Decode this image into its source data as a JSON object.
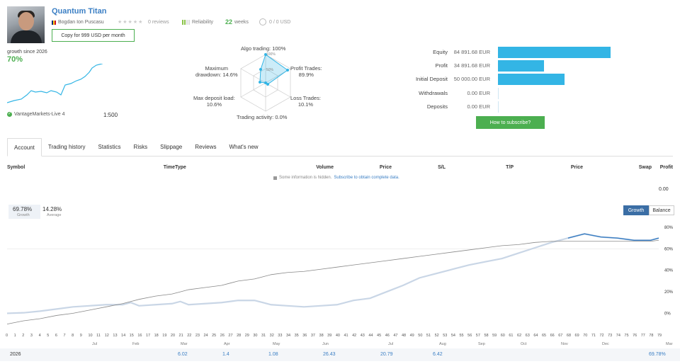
{
  "header": {
    "title": "Quantum Titan",
    "author": "Bogdan Ion Puscasu",
    "reviews": "0 reviews",
    "reliability_label": "Reliability",
    "weeks_value": "22",
    "weeks_label": "weeks",
    "subscribers": "0 / 0 USD",
    "copy_button": "Copy for 999 USD per month"
  },
  "summary": {
    "growth_since": "growth since 2026",
    "growth_pct": "70%",
    "broker": "VantageMarkets-Live 4",
    "leverage": "1:500"
  },
  "radar": {
    "algo": "Algo trading: 100%",
    "profit": [
      "Profit Trades:",
      "89.9%"
    ],
    "loss": [
      "Loss Trades:",
      "10.1%"
    ],
    "activity": "Trading activity: 0.0%",
    "deposit_load": [
      "Max deposit load:",
      "10.6%"
    ],
    "drawdown": [
      "Maximum",
      "drawdown: 14.6%"
    ],
    "ring_100": "100%",
    "ring_50": "50%"
  },
  "stats": [
    {
      "label": "Equity",
      "value": "84 891.68 EUR",
      "fraction": 1.0
    },
    {
      "label": "Profit",
      "value": "34 891.68 EUR",
      "fraction": 0.41
    },
    {
      "label": "Initial Deposit",
      "value": "50 000.00 EUR",
      "fraction": 0.59
    },
    {
      "label": "Withdrawals",
      "value": "0.00 EUR",
      "fraction": 0
    },
    {
      "label": "Deposits",
      "value": "0.00 EUR",
      "fraction": 0
    }
  ],
  "subscribe_button": "How to subscribe?",
  "tabs": [
    "Account",
    "Trading history",
    "Statistics",
    "Risks",
    "Slippage",
    "Reviews",
    "What's new"
  ],
  "table": {
    "columns": [
      "Symbol",
      "Time",
      "Type",
      "Volume",
      "Price",
      "S/L",
      "T/P",
      "Price",
      "Swap",
      "Profit"
    ],
    "note_text": "Some information is hidden.",
    "note_link": "Subscribe to obtain complete data.",
    "total_profit": "0.00"
  },
  "chart_legend": {
    "growth_value": "69.78%",
    "growth_label": "Growth",
    "average_value": "14.28%",
    "average_label": "Average"
  },
  "toggle": {
    "growth": "Growth",
    "balance": "Balance"
  },
  "footer": {
    "year": "2026",
    "values": [
      "6.02",
      "1.4",
      "1.08",
      "26.43",
      "20.79",
      "6.42"
    ],
    "total": "69.78%"
  },
  "colors": {
    "accent": "#3b7fc4",
    "green": "#4caf50",
    "bar": "#33b5e5",
    "series": "#c9d6e6",
    "series_dark": "#3b7fc4"
  },
  "chart_data": {
    "type": "line",
    "title": "",
    "ylabel": "",
    "yticks": [
      "0%",
      "20%",
      "40%",
      "60%",
      "80%"
    ],
    "ylim": [
      -5,
      84
    ],
    "month_labels": [
      "Jul",
      "Feb",
      "Mar",
      "Apr",
      "May",
      "Jun",
      "Jul",
      "Aug",
      "Sep",
      "Oct",
      "Nov",
      "Dec",
      "Mar"
    ],
    "x_ticks": [
      "0",
      "1",
      "2",
      "3",
      "4",
      "5",
      "6",
      "7",
      "8",
      "9",
      "10",
      "11",
      "12",
      "13",
      "14",
      "15",
      "16",
      "17",
      "18",
      "19",
      "20",
      "21",
      "22",
      "23",
      "24",
      "25",
      "26",
      "27",
      "28",
      "29",
      "30",
      "31",
      "32",
      "33",
      "34",
      "35",
      "36",
      "37",
      "38",
      "39",
      "40",
      "41",
      "42",
      "43",
      "44",
      "45",
      "46",
      "47",
      "48",
      "49",
      "50",
      "51",
      "52",
      "53",
      "54",
      "55",
      "56",
      "57",
      "58",
      "59",
      "60",
      "61",
      "62",
      "63",
      "64",
      "65",
      "66",
      "67",
      "68",
      "69",
      "70",
      "71",
      "72",
      "73",
      "74",
      "75",
      "76",
      "77",
      "78",
      "79"
    ],
    "x": [
      0,
      2,
      4,
      6,
      8,
      10,
      12,
      14,
      15,
      16,
      18,
      20,
      21,
      22,
      24,
      26,
      27,
      28,
      30,
      31,
      32,
      34,
      36,
      38,
      40,
      42,
      44,
      46,
      48,
      50,
      52,
      54,
      56,
      58,
      60,
      62,
      64,
      66,
      68,
      70,
      72,
      74,
      76,
      78,
      79
    ],
    "series": [
      {
        "values": [
          0,
          0.5,
          2,
          4,
          6,
          7,
          8,
          8,
          10,
          7,
          8,
          9,
          11,
          8,
          9,
          10,
          11,
          12,
          12,
          10,
          8,
          7,
          6,
          7,
          8,
          12,
          14,
          20,
          26,
          33,
          37,
          41,
          45,
          48,
          51,
          56,
          61,
          66,
          70,
          74,
          71,
          70,
          68,
          68,
          70
        ]
      },
      {
        "values": [
          -10,
          -7,
          -5,
          -2,
          0,
          3,
          6,
          9,
          11,
          13,
          16,
          18,
          20,
          22,
          24,
          26,
          28,
          30,
          32,
          34,
          36,
          38,
          39,
          41,
          43,
          45,
          47,
          49,
          51,
          53,
          55,
          57,
          59,
          61,
          63,
          64,
          66,
          67,
          67,
          67,
          67,
          67,
          67,
          67,
          68
        ]
      }
    ]
  }
}
